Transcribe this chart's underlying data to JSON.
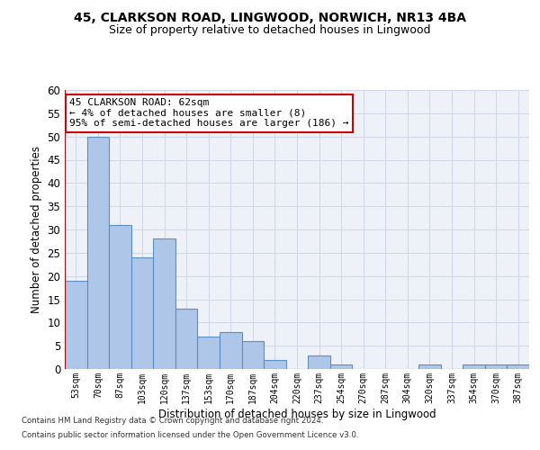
{
  "title1": "45, CLARKSON ROAD, LINGWOOD, NORWICH, NR13 4BA",
  "title2": "Size of property relative to detached houses in Lingwood",
  "xlabel": "Distribution of detached houses by size in Lingwood",
  "ylabel": "Number of detached properties",
  "categories": [
    "53sqm",
    "70sqm",
    "87sqm",
    "103sqm",
    "120sqm",
    "137sqm",
    "153sqm",
    "170sqm",
    "187sqm",
    "204sqm",
    "220sqm",
    "237sqm",
    "254sqm",
    "270sqm",
    "287sqm",
    "304sqm",
    "320sqm",
    "337sqm",
    "354sqm",
    "370sqm",
    "387sqm"
  ],
  "values": [
    19,
    50,
    31,
    24,
    28,
    13,
    7,
    8,
    6,
    2,
    0,
    3,
    1,
    0,
    0,
    0,
    1,
    0,
    1,
    1,
    1
  ],
  "bar_color": "#aec6e8",
  "bar_edge_color": "#5a8fc2",
  "grid_color": "#d0d8e8",
  "background_color": "#eef2f8",
  "annotation_line1": "45 CLARKSON ROAD: 62sqm",
  "annotation_line2": "← 4% of detached houses are smaller (8)",
  "annotation_line3": "95% of semi-detached houses are larger (186) →",
  "annotation_box_color": "#ffffff",
  "annotation_box_edge_color": "#cc0000",
  "vline_color": "#cc0000",
  "ylim": [
    0,
    60
  ],
  "yticks": [
    0,
    5,
    10,
    15,
    20,
    25,
    30,
    35,
    40,
    45,
    50,
    55,
    60
  ],
  "footer1": "Contains HM Land Registry data © Crown copyright and database right 2024.",
  "footer2": "Contains public sector information licensed under the Open Government Licence v3.0."
}
